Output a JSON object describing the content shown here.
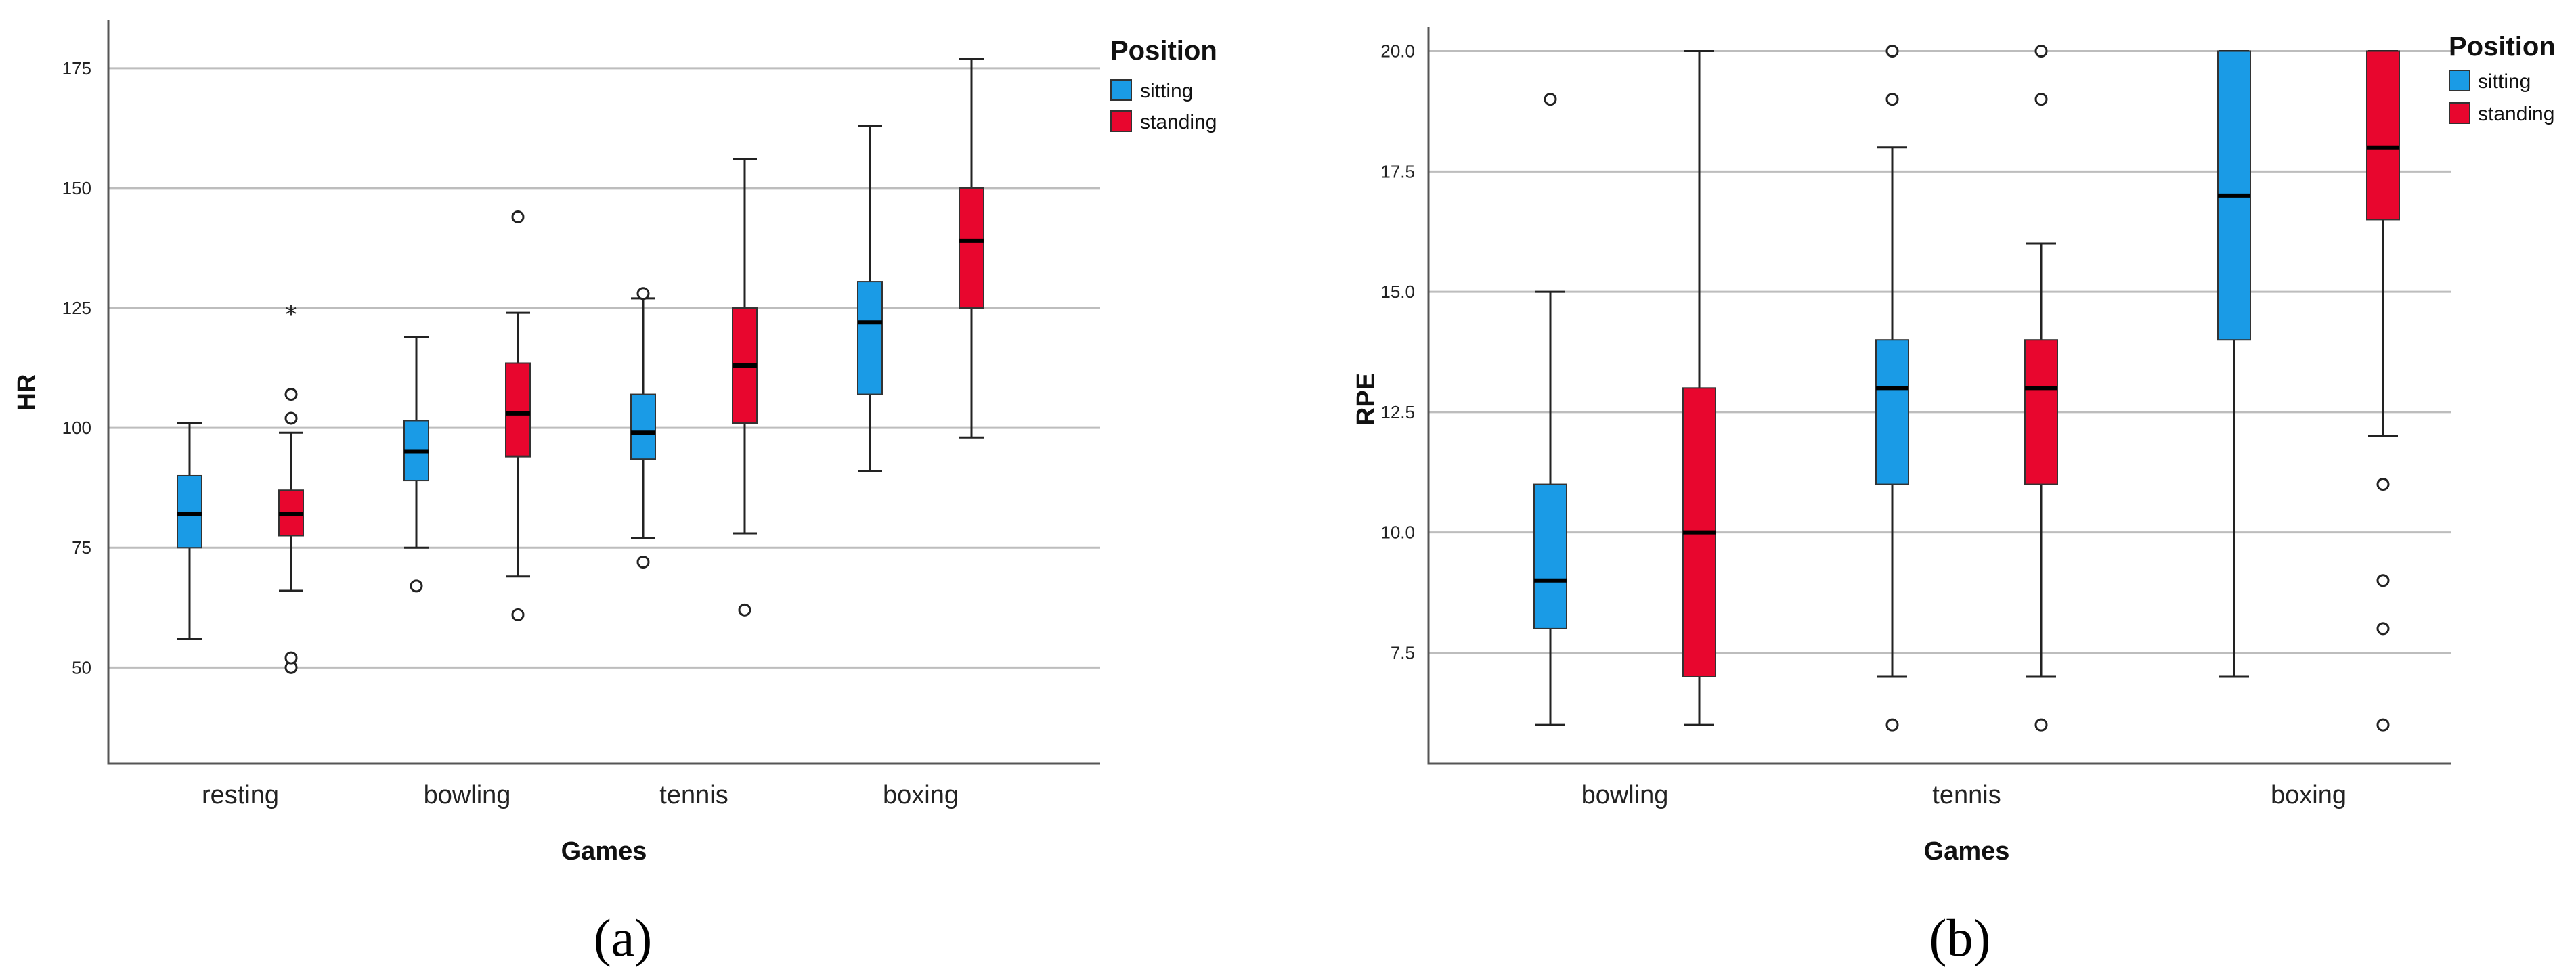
{
  "chart_data": [
    {
      "type": "boxplot",
      "caption": "(a)",
      "title": "",
      "xlabel": "Games",
      "ylabel": "HR",
      "ylim": [
        30,
        185
      ],
      "yticks": [
        50,
        75,
        100,
        125,
        150,
        175
      ],
      "yticklabels": [
        "50",
        "75",
        "100",
        "125",
        "150",
        "175"
      ],
      "grid": true,
      "legend": {
        "title": "Position",
        "placement": "top-right outside",
        "entries": [
          {
            "name": "sitting",
            "color": "#1a9be6"
          },
          {
            "name": "standing",
            "color": "#e8062e"
          }
        ]
      },
      "categories": [
        "resting",
        "bowling",
        "tennis",
        "boxing"
      ],
      "series": [
        {
          "name": "sitting",
          "color": "#1a9be6",
          "boxes": [
            {
              "category": "resting",
              "min": 56,
              "q1": 75,
              "median": 82,
              "q3": 90,
              "max": 101,
              "outliers": [],
              "extremes": []
            },
            {
              "category": "bowling",
              "min": 75,
              "q1": 89,
              "median": 95,
              "q3": 101.5,
              "max": 119,
              "outliers": [
                67
              ],
              "extremes": []
            },
            {
              "category": "tennis",
              "min": 77,
              "q1": 93.5,
              "median": 99,
              "q3": 107,
              "max": 127,
              "outliers": [
                72,
                128
              ],
              "extremes": []
            },
            {
              "category": "boxing",
              "min": 91,
              "q1": 107,
              "median": 122,
              "q3": 130.5,
              "max": 163,
              "outliers": [],
              "extremes": []
            }
          ]
        },
        {
          "name": "standing",
          "color": "#e8062e",
          "boxes": [
            {
              "category": "resting",
              "min": 66,
              "q1": 77.5,
              "median": 82,
              "q3": 87,
              "max": 99,
              "outliers": [
                50,
                52,
                102,
                107
              ],
              "extremes": [
                124
              ]
            },
            {
              "category": "bowling",
              "min": 69,
              "q1": 94,
              "median": 103,
              "q3": 113.5,
              "max": 124,
              "outliers": [
                61,
                144
              ],
              "extremes": []
            },
            {
              "category": "tennis",
              "min": 78,
              "q1": 101,
              "median": 113,
              "q3": 125,
              "max": 156,
              "outliers": [
                62
              ],
              "extremes": []
            },
            {
              "category": "boxing",
              "min": 98,
              "q1": 125,
              "median": 139,
              "q3": 150,
              "max": 177,
              "outliers": [],
              "extremes": []
            }
          ]
        }
      ]
    },
    {
      "type": "boxplot",
      "caption": "(b)",
      "title": "",
      "xlabel": "Games",
      "ylabel": "RPE",
      "ylim": [
        5.2,
        20.5
      ],
      "yticks": [
        7.5,
        10,
        12.5,
        15,
        17.5,
        20
      ],
      "yticklabels": [
        "7.5",
        "10.0",
        "12.5",
        "15.0",
        "17.5",
        "20.0"
      ],
      "grid": true,
      "legend": {
        "title": "Position",
        "placement": "top-right",
        "entries": [
          {
            "name": "sitting",
            "color": "#1a9be6"
          },
          {
            "name": "standing",
            "color": "#e8062e"
          }
        ]
      },
      "categories": [
        "bowling",
        "tennis",
        "boxing"
      ],
      "series": [
        {
          "name": "sitting",
          "color": "#1a9be6",
          "boxes": [
            {
              "category": "bowling",
              "min": 6,
              "q1": 8,
              "median": 9,
              "q3": 11,
              "max": 15,
              "outliers": [
                19
              ],
              "extremes": []
            },
            {
              "category": "tennis",
              "min": 7,
              "q1": 11,
              "median": 13,
              "q3": 14,
              "max": 18,
              "outliers": [
                6,
                19,
                20
              ],
              "extremes": []
            },
            {
              "category": "boxing",
              "min": 7,
              "q1": 14,
              "median": 17,
              "q3": 20,
              "max": 20,
              "outliers": [],
              "extremes": []
            }
          ]
        },
        {
          "name": "standing",
          "color": "#e8062e",
          "boxes": [
            {
              "category": "bowling",
              "min": 6,
              "q1": 7,
              "median": 10,
              "q3": 13,
              "max": 20,
              "outliers": [],
              "extremes": []
            },
            {
              "category": "tennis",
              "min": 7,
              "q1": 11,
              "median": 13,
              "q3": 14,
              "max": 16,
              "outliers": [
                6,
                19,
                20
              ],
              "extremes": []
            },
            {
              "category": "boxing",
              "min": 12,
              "q1": 16.5,
              "median": 18,
              "q3": 20,
              "max": 20,
              "outliers": [
                6,
                8,
                9,
                11
              ],
              "extremes": []
            }
          ]
        }
      ]
    }
  ]
}
